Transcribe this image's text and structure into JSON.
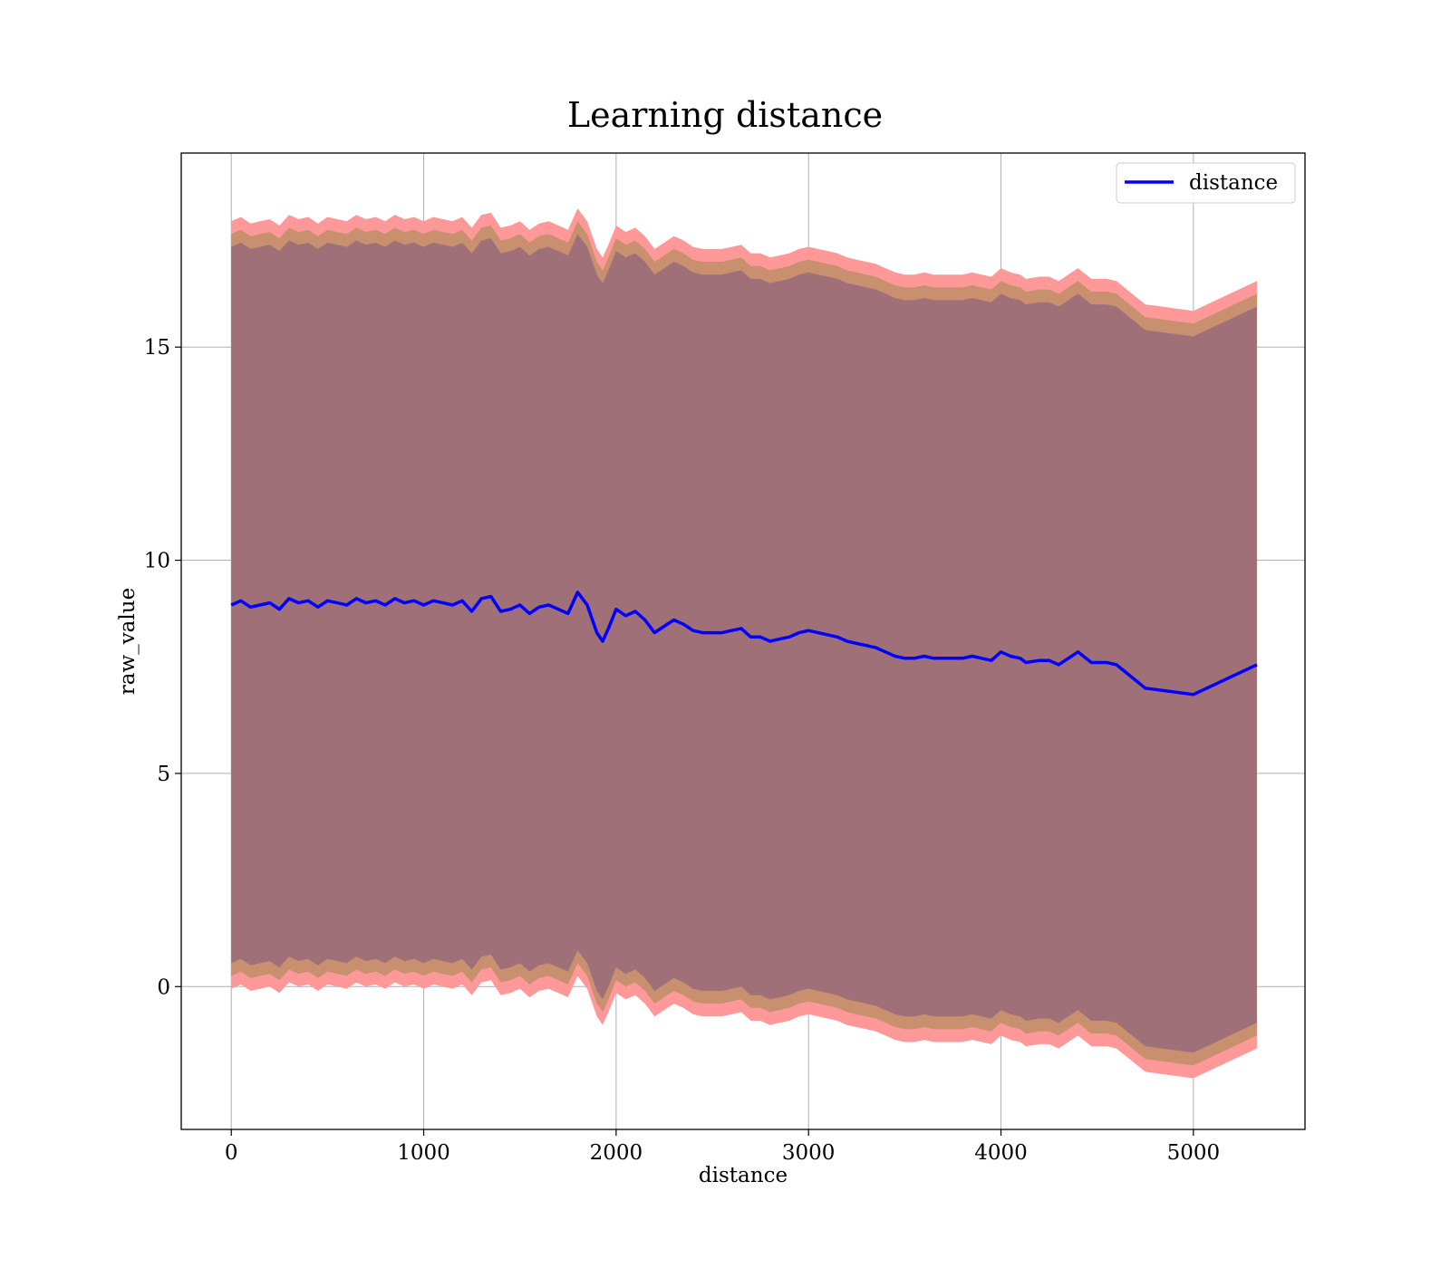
{
  "chart_data": {
    "type": "line",
    "title": "Learning distance",
    "xlabel": "distance",
    "ylabel": "raw_value",
    "xlim": [
      -260,
      5580
    ],
    "ylim": [
      -3.35,
      19.55
    ],
    "x_ticks": [
      0,
      1000,
      2000,
      3000,
      4000,
      5000
    ],
    "x_tick_labels": [
      "0",
      "1000",
      "2000",
      "3000",
      "4000",
      "5000"
    ],
    "y_ticks": [
      0,
      5,
      10,
      15
    ],
    "y_tick_labels": [
      "0",
      "5",
      "10",
      "15"
    ],
    "grid": true,
    "legend": {
      "position": "top-right",
      "entries": [
        "distance"
      ]
    },
    "colors": {
      "line": "#0000ff",
      "band_outer": "#ff9999",
      "band_middle": "#c8906e",
      "band_inner": "#a07078",
      "grid": "#b0b0b0"
    },
    "series": [
      {
        "name": "distance",
        "x": [
          0,
          50,
          100,
          150,
          200,
          250,
          300,
          350,
          400,
          450,
          500,
          550,
          600,
          650,
          700,
          750,
          800,
          850,
          900,
          950,
          1000,
          1050,
          1100,
          1150,
          1200,
          1250,
          1300,
          1350,
          1400,
          1450,
          1500,
          1550,
          1600,
          1650,
          1700,
          1750,
          1800,
          1850,
          1900,
          1930,
          1960,
          2000,
          2050,
          2100,
          2150,
          2200,
          2250,
          2300,
          2350,
          2400,
          2450,
          2500,
          2550,
          2600,
          2650,
          2700,
          2750,
          2800,
          2850,
          2900,
          2950,
          3000,
          3050,
          3100,
          3150,
          3200,
          3250,
          3300,
          3350,
          3400,
          3450,
          3500,
          3550,
          3600,
          3650,
          3700,
          3750,
          3800,
          3850,
          3900,
          3950,
          4000,
          4050,
          4100,
          4130,
          4200,
          4250,
          4300,
          4400,
          4470,
          4550,
          4600,
          4750,
          5000,
          5330
        ],
        "y": [
          8.95,
          9.05,
          8.9,
          8.95,
          9.0,
          8.85,
          9.1,
          9.0,
          9.05,
          8.9,
          9.05,
          9.0,
          8.95,
          9.1,
          9.0,
          9.05,
          8.95,
          9.1,
          9.0,
          9.05,
          8.95,
          9.05,
          9.0,
          8.95,
          9.05,
          8.8,
          9.1,
          9.15,
          8.8,
          8.85,
          8.95,
          8.75,
          8.9,
          8.95,
          8.85,
          8.75,
          9.25,
          8.95,
          8.3,
          8.1,
          8.4,
          8.85,
          8.7,
          8.8,
          8.6,
          8.3,
          8.45,
          8.6,
          8.5,
          8.35,
          8.3,
          8.3,
          8.3,
          8.35,
          8.4,
          8.2,
          8.2,
          8.1,
          8.15,
          8.2,
          8.3,
          8.35,
          8.3,
          8.25,
          8.2,
          8.1,
          8.05,
          8.0,
          7.95,
          7.85,
          7.75,
          7.7,
          7.7,
          7.75,
          7.7,
          7.7,
          7.7,
          7.7,
          7.75,
          7.7,
          7.65,
          7.85,
          7.75,
          7.7,
          7.6,
          7.65,
          7.65,
          7.55,
          7.85,
          7.6,
          7.6,
          7.55,
          7.0,
          6.85,
          7.55
        ]
      }
    ],
    "bands": [
      {
        "level": "outer",
        "offset_upper": 9.0,
        "offset_lower": -9.0
      },
      {
        "level": "middle",
        "offset_upper": 8.7,
        "offset_lower": -8.7
      },
      {
        "level": "inner",
        "offset_upper": 8.4,
        "offset_lower": -8.4
      }
    ]
  }
}
